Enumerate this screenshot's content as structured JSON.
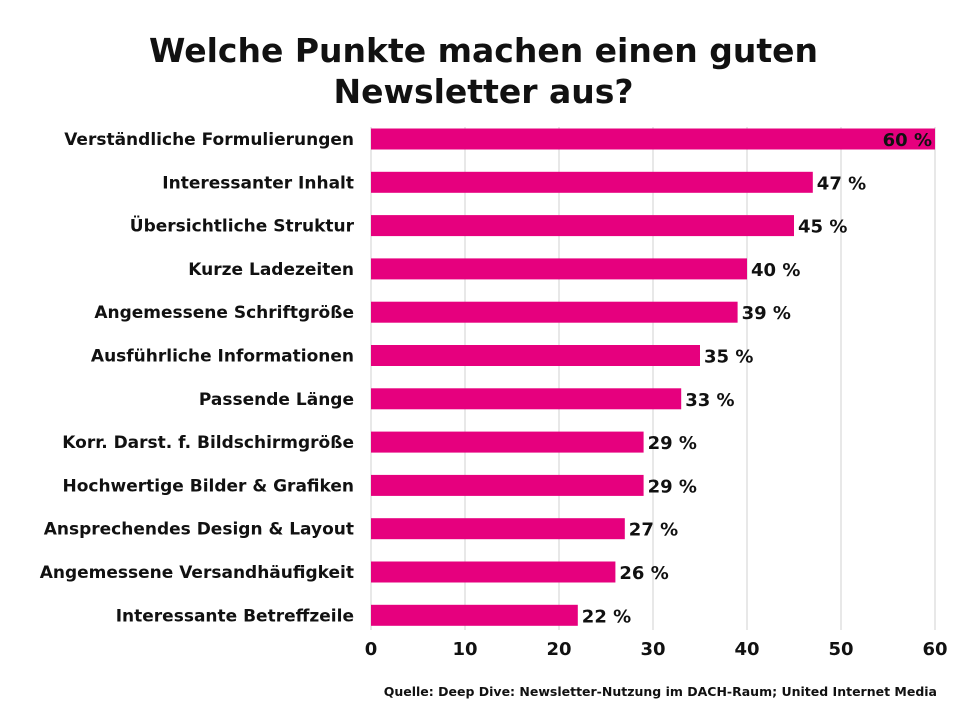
{
  "chart_data": {
    "type": "bar",
    "orientation": "horizontal",
    "title_lines": [
      "Welche Punkte machen einen guten",
      "Newsletter aus?"
    ],
    "categories": [
      "Verständliche Formulierungen",
      "Interessanter Inhalt",
      "Übersichtliche Struktur",
      "Kurze Ladezeiten",
      "Angemessene Schriftgröße",
      "Ausführliche Informationen",
      "Passende Länge",
      "Korr. Darst. f. Bildschirmgröße",
      "Hochwertige Bilder & Grafiken",
      "Ansprechendes Design & Layout",
      "Angemessene Versandhäufigkeit",
      "Interessante Betreffzeile"
    ],
    "values": [
      60,
      47,
      45,
      40,
      39,
      35,
      33,
      29,
      29,
      27,
      26,
      22
    ],
    "value_labels": [
      "60 %",
      "47 %",
      "45 %",
      "40 %",
      "39 %",
      "35 %",
      "33 %",
      "29 %",
      "29 %",
      "27 %",
      "26 %",
      "22 %"
    ],
    "xlim": [
      0,
      60
    ],
    "xticks": [
      0,
      10,
      20,
      30,
      40,
      50,
      60
    ],
    "xtick_labels": [
      "0",
      "10",
      "20",
      "30",
      "40",
      "50",
      "60"
    ],
    "grid": "vertical",
    "legend": "none",
    "colors": {
      "bar": "#e6007e",
      "grid": "#d0d0d0",
      "text": "#111111"
    }
  },
  "source": "Quelle: Deep Dive: Newsletter-Nutzung im DACH-Raum; United Internet Media"
}
